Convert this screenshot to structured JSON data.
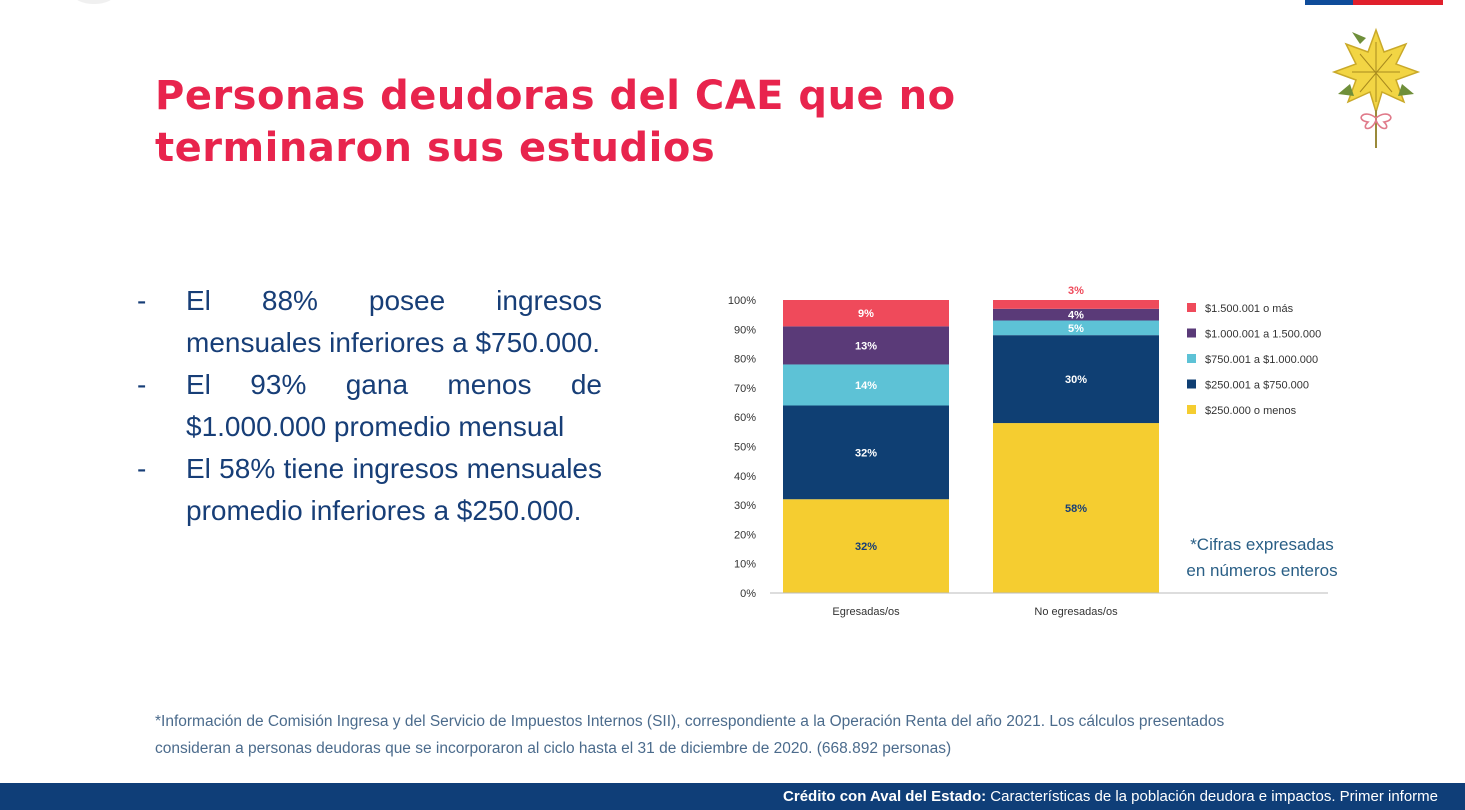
{
  "header": {
    "title_line1": "Personas deudoras del CAE que no",
    "title_line2": "terminaron sus estudios"
  },
  "bullets": [
    {
      "dash": "-",
      "text": "El 88% posee ingresos mensuales inferiores a $750.000."
    },
    {
      "dash": "-",
      "text": "El 93% gana menos de $1.000.000 promedio mensual"
    },
    {
      "dash": "-",
      "text": "El 58% tiene ingresos mensuales promedio inferiores a $250.000."
    }
  ],
  "chart_data": {
    "type": "bar",
    "stacked": true,
    "normalized": true,
    "categories": [
      "Egresadas/os",
      "No egresadas/os"
    ],
    "series": [
      {
        "name": "$250.000 o menos",
        "values": [
          32,
          58
        ],
        "labels": [
          "32%",
          "58%"
        ],
        "color": "#f5cd30",
        "label_color": "#173e77"
      },
      {
        "name": "$250.001 a $750.000",
        "values": [
          32,
          30
        ],
        "labels": [
          "32%",
          "30%"
        ],
        "color": "#0f3f73",
        "label_color": "#ffffff"
      },
      {
        "name": "$750.001 a $1.000.000",
        "values": [
          14,
          5
        ],
        "labels": [
          "14%",
          "5%"
        ],
        "color": "#5dc2d6",
        "label_color": "#ffffff"
      },
      {
        "name": "$1.000.001 a 1.500.000",
        "values": [
          13,
          4
        ],
        "labels": [
          "13%",
          "4%"
        ],
        "color": "#5a3a78",
        "label_color": "#ffffff"
      },
      {
        "name": "$1.500.001 o más",
        "values": [
          9,
          3
        ],
        "labels": [
          "9%",
          "3%"
        ],
        "color": "#ef4a5b",
        "label_color": "#ffffff"
      }
    ],
    "yticks": [
      "0%",
      "10%",
      "20%",
      "30%",
      "40%",
      "50%",
      "60%",
      "70%",
      "80%",
      "90%",
      "100%"
    ],
    "ylim": [
      0,
      100
    ],
    "legend_position": "right",
    "title": "",
    "xlabel": "",
    "ylabel": ""
  },
  "chart_note_line1": "*Cifras expresadas",
  "chart_note_line2": "en números enteros",
  "footnote_line1": "*Información de Comisión Ingresa y del Servicio de Impuestos Internos (SII), correspondiente a la Operación Renta del año 2021. Los cálculos presentados",
  "footnote_line2": "consideran a personas deudoras que se incorporaron al ciclo hasta el 31 de diciembre de 2020. (668.892 personas)",
  "footer": {
    "bold": "Crédito con Aval del Estado:",
    "text": " Características de la población deudora e impactos. Primer informe"
  },
  "colors": {
    "title": "#e8244d",
    "body_text": "#173e77",
    "footer_bg": "#0f3e78",
    "flag_blue": "#0f4c9a",
    "flag_red": "#e0202c"
  }
}
